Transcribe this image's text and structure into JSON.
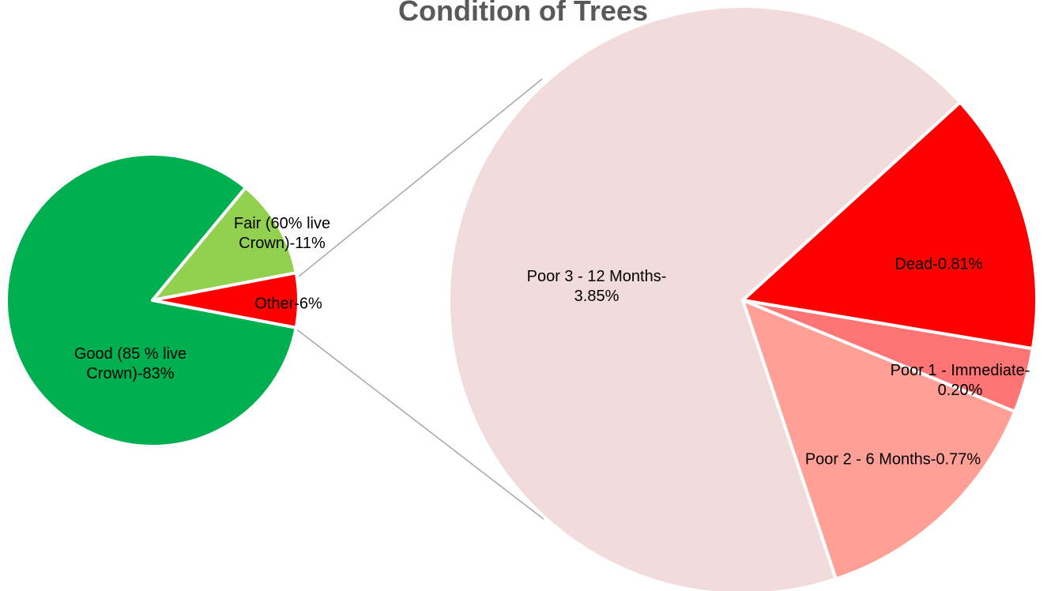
{
  "chart_data": [
    {
      "type": "pie",
      "title": "Condition of Trees",
      "values": [
        83,
        11,
        6
      ],
      "value_labels": [
        "Good (85 % live Crown)-83%",
        "Fair (60% live Crown)-11%",
        "Other-6%"
      ],
      "colors": [
        "#00b050",
        "#92d050",
        "#ff0000"
      ]
    },
    {
      "type": "pie",
      "values": [
        3.85,
        0.81,
        0.2,
        0.77
      ],
      "value_labels": [
        "Poor 3 - 12 Months-3.85%",
        "Dead-0.81%",
        "Poor 1 - Immediate-0.20%",
        "Poor 2 - 6 Months-0.77%"
      ],
      "colors": [
        "#f2dcdb",
        "#ff0000",
        "#ff7474",
        "#ff9f95"
      ]
    }
  ]
}
